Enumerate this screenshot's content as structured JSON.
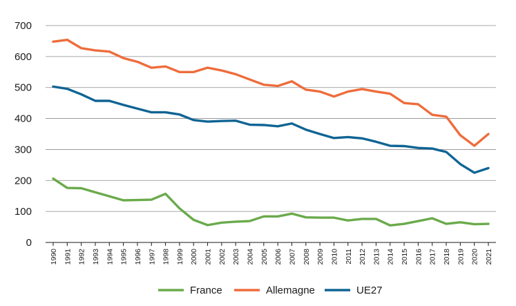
{
  "chart_data": {
    "type": "line",
    "title": "",
    "xlabel": "",
    "ylabel": "",
    "ylim": [
      0,
      700
    ],
    "yticks": [
      0,
      100,
      200,
      300,
      400,
      500,
      600,
      700
    ],
    "grid": "horizontal",
    "legend_position": "bottom",
    "x": [
      "1990",
      "1991",
      "1992",
      "1993",
      "1994",
      "1995",
      "1996",
      "1997",
      "1998",
      "1999",
      "2000",
      "2001",
      "2002",
      "2003",
      "2004",
      "2005",
      "2006",
      "2007",
      "2008",
      "2009",
      "2010",
      "2011",
      "2012",
      "2013",
      "2014",
      "2015",
      "2016",
      "2017",
      "2018",
      "2019",
      "2020",
      "2021"
    ],
    "series": [
      {
        "name": "France",
        "color": "#6aaa4b",
        "values": [
          206,
          176,
          175,
          162,
          149,
          136,
          137,
          138,
          157,
          110,
          73,
          56,
          64,
          67,
          69,
          84,
          84,
          93,
          81,
          80,
          80,
          71,
          76,
          76,
          55,
          60,
          69,
          78,
          60,
          65,
          59,
          60
        ]
      },
      {
        "name": "Allemagne",
        "color": "#ee6c3b",
        "values": [
          648,
          654,
          627,
          620,
          616,
          595,
          583,
          564,
          568,
          550,
          550,
          564,
          555,
          543,
          526,
          509,
          505,
          520,
          493,
          487,
          471,
          487,
          495,
          487,
          480,
          450,
          446,
          412,
          406,
          346,
          312,
          350
        ]
      },
      {
        "name": "UE27",
        "color": "#0f6494",
        "values": [
          503,
          496,
          478,
          457,
          457,
          444,
          432,
          420,
          420,
          413,
          395,
          390,
          392,
          393,
          380,
          379,
          375,
          384,
          364,
          350,
          337,
          340,
          336,
          325,
          312,
          311,
          305,
          303,
          292,
          253,
          225,
          240
        ]
      }
    ]
  }
}
